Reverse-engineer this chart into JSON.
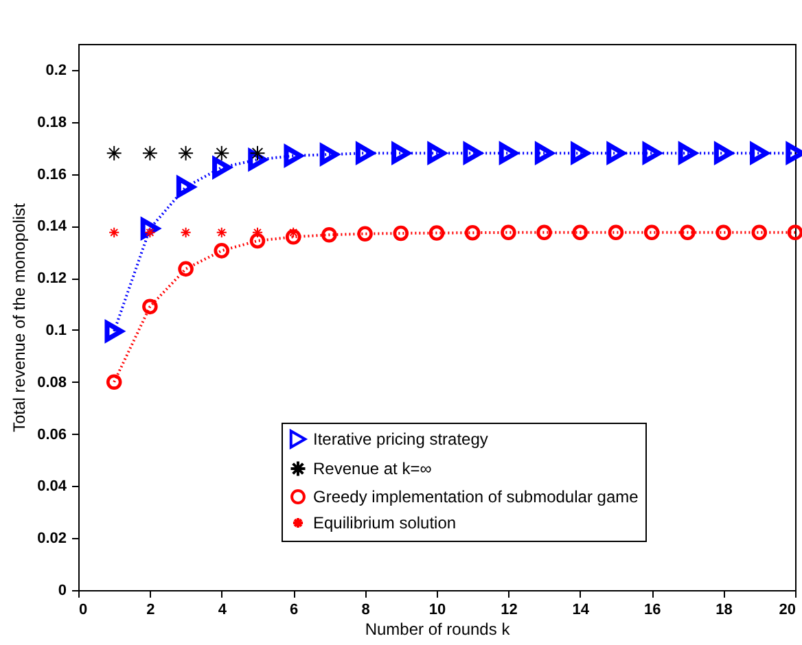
{
  "chart_data": {
    "type": "line",
    "xlabel": "Number of rounds k",
    "ylabel": "Total revenue of the monopolist",
    "x": [
      1,
      2,
      3,
      4,
      5,
      6,
      7,
      8,
      9,
      10,
      11,
      12,
      13,
      14,
      15,
      16,
      17,
      18,
      19,
      20
    ],
    "xlim": [
      0,
      20
    ],
    "xticks": [
      0,
      2,
      4,
      6,
      8,
      10,
      12,
      14,
      16,
      18,
      20
    ],
    "ylim": [
      0,
      0.21
    ],
    "yticks": [
      0,
      0.02,
      0.04,
      0.06,
      0.08,
      0.1,
      0.12,
      0.14,
      0.16,
      0.18,
      0.2
    ],
    "legend": "bottom",
    "series": [
      {
        "name": "Iterative pricing strategy",
        "type": "line",
        "color": "#0000ff",
        "marker": "triangle",
        "line_style": "dotted",
        "values": [
          0.0995,
          0.139,
          0.155,
          0.1625,
          0.1655,
          0.167,
          0.1675,
          0.168,
          0.168,
          0.168,
          0.168,
          0.168,
          0.168,
          0.168,
          0.168,
          0.168,
          0.168,
          0.168,
          0.168,
          0.168
        ]
      },
      {
        "name": "Revenue at k=∞",
        "type": "scatter",
        "color": "#000000",
        "marker": "cross",
        "values": [
          0.168,
          0.168,
          0.168,
          0.168,
          0.168,
          null,
          null,
          null,
          null,
          null,
          null,
          null,
          null,
          null,
          null,
          null,
          null,
          null,
          null,
          null
        ]
      },
      {
        "name": "Greedy implementation of submodular game",
        "type": "line",
        "color": "#ff0000",
        "marker": "circle",
        "line_style": "dotted",
        "values": [
          0.08,
          0.109,
          0.1235,
          0.1305,
          0.1343,
          0.1358,
          0.1366,
          0.137,
          0.1372,
          0.1373,
          0.1374,
          0.1375,
          0.1375,
          0.1375,
          0.1375,
          0.1375,
          0.1375,
          0.1375,
          0.1375,
          0.1375
        ]
      },
      {
        "name": "Equilibrium solution",
        "type": "scatter",
        "color": "#ff0000",
        "marker": "cross",
        "values": [
          0.1375,
          0.1375,
          0.1375,
          0.1375,
          0.1375,
          0.1375,
          null,
          null,
          null,
          null,
          null,
          null,
          null,
          null,
          null,
          null,
          null,
          null,
          null,
          null
        ]
      }
    ]
  }
}
